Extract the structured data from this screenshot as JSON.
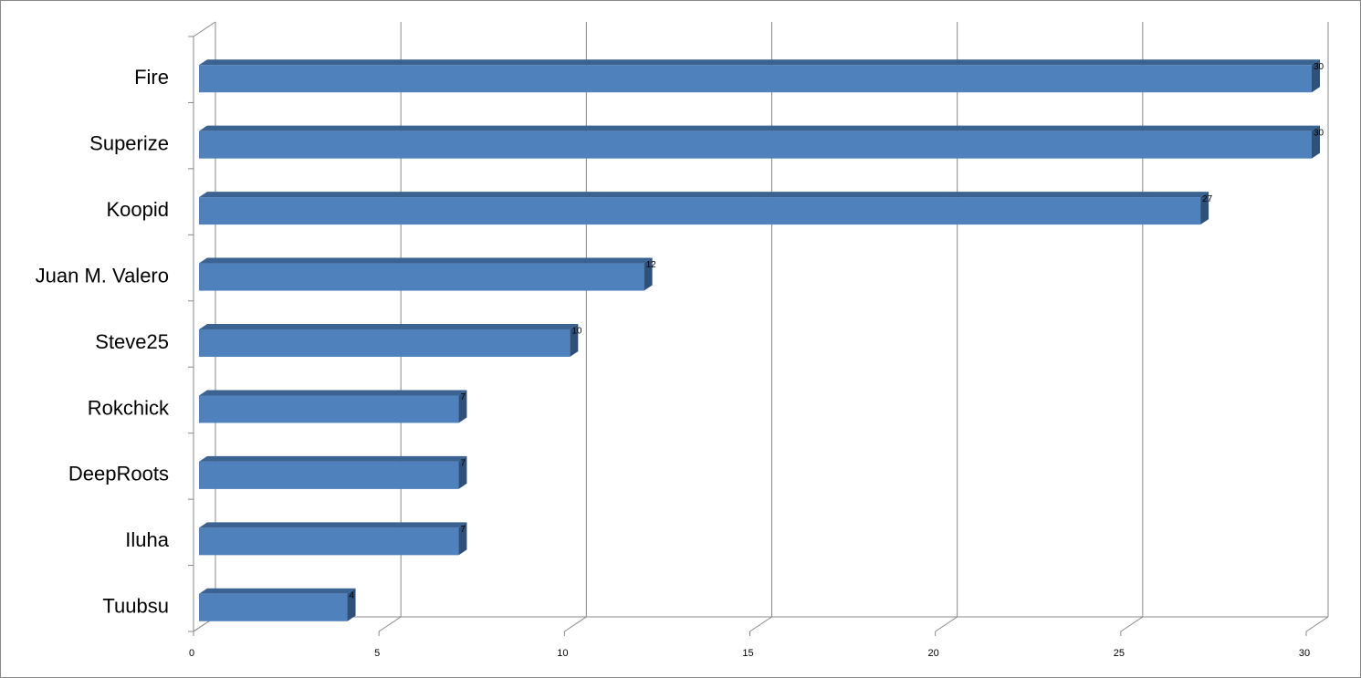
{
  "chart_data": {
    "type": "bar",
    "orientation": "horizontal",
    "categories": [
      "Fire",
      "Superize",
      "Koopid",
      "Juan M. Valero",
      "Steve25",
      "Rokchick",
      "DeepRoots",
      "Iluha",
      "Tuubsu"
    ],
    "values": [
      30,
      30,
      27,
      12,
      10,
      7,
      7,
      7,
      4
    ],
    "color": "#4f81bd",
    "xlim": [
      0,
      30
    ],
    "xticks": [
      0,
      5,
      10,
      15,
      20,
      25,
      30
    ],
    "grid": true
  }
}
